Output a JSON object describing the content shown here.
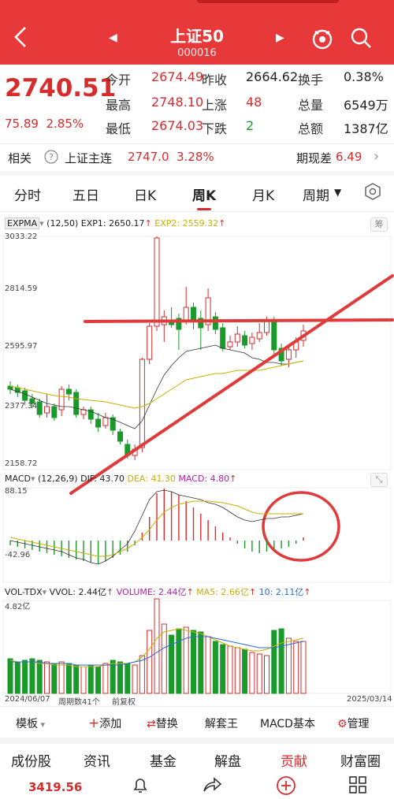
{
  "header": {
    "title": "上证50",
    "code": "000016"
  },
  "quote": {
    "price": "2740.51",
    "change": "75.89",
    "change_pct": "2.85%",
    "rows": [
      [
        {
          "label": "今开",
          "value": "2674.49",
          "color": "red"
        },
        {
          "label": "昨收",
          "value": "2664.62",
          "color": "dark"
        },
        {
          "label": "换手",
          "value": "0.38%",
          "color": "dark"
        }
      ],
      [
        {
          "label": "最高",
          "value": "2748.10",
          "color": "red"
        },
        {
          "label": "上涨",
          "value": "48",
          "color": "red"
        },
        {
          "label": "总量",
          "value": "6549万",
          "color": "dark"
        }
      ],
      [
        {
          "label": "最低",
          "value": "2674.03",
          "color": "red"
        },
        {
          "label": "下跌",
          "value": "2",
          "color": "green"
        },
        {
          "label": "总额",
          "value": "1387亿",
          "color": "dark"
        }
      ]
    ]
  },
  "related": {
    "label": "相关",
    "name": "上证主连",
    "price": "2747.0",
    "pct": "3.28%",
    "basis_label": "期现差",
    "basis": "6.49"
  },
  "tabs": [
    "分时",
    "五日",
    "日K",
    "周K",
    "月K",
    "周期"
  ],
  "active_tab": "周K",
  "kline": {
    "legend": {
      "name": "EXPMA",
      "params": "(12,50)",
      "exp1": "EXP1: 2650.17",
      "exp2": "EXP2: 2559.32"
    },
    "axis": [
      "3033.22",
      "2814.59",
      "2595.97",
      "2377.34",
      "2158.72"
    ],
    "side_button": "筹"
  },
  "macd": {
    "legend": {
      "name": "MACD",
      "params": "(12,26,9)",
      "dif": "DIF: 43.70",
      "dea": "DEA: 41.30",
      "macd": "MACD: 4.80"
    },
    "axis": [
      "88.15",
      "-42.96"
    ]
  },
  "vol": {
    "legend": {
      "name": "VOL-TDX",
      "vvol": "VVOL: 2.44亿",
      "volume": "VOLUME: 2.44亿",
      "ma5": "MA5: 2.66亿",
      "ma10": "10: 2.11亿"
    },
    "axis_top": "4.82亿",
    "date_start": "2024/06/07",
    "week_count": "周期数41个",
    "adjust": "前复权",
    "date_end": "2025/03/14"
  },
  "toolbar": [
    "模板",
    "添加",
    "替换",
    "解套王",
    "MACD基本",
    "管理"
  ],
  "subtabs": [
    "成份股",
    "资讯",
    "基金",
    "解盘",
    "贡献",
    "财富圈"
  ],
  "active_subtab": "贡献",
  "bottom": {
    "index": "3419.56"
  },
  "colors": {
    "up": "#d62c2c",
    "down": "#1a9a2a",
    "header": "#e8393a"
  }
}
